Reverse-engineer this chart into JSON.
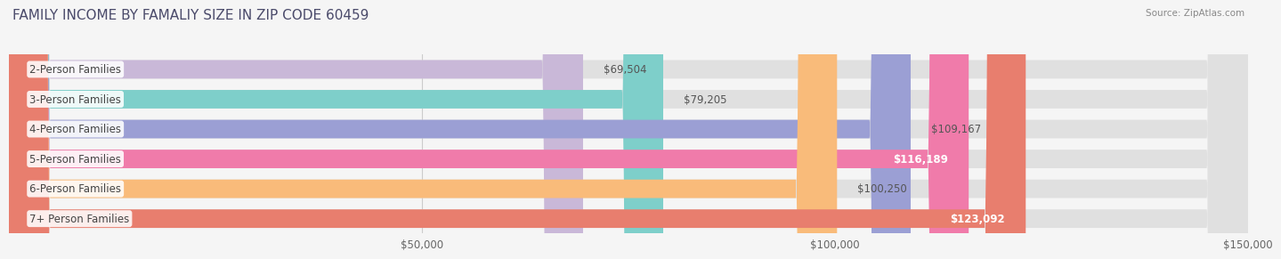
{
  "title": "FAMILY INCOME BY FAMALIY SIZE IN ZIP CODE 60459",
  "source": "Source: ZipAtlas.com",
  "categories": [
    "2-Person Families",
    "3-Person Families",
    "4-Person Families",
    "5-Person Families",
    "6-Person Families",
    "7+ Person Families"
  ],
  "values": [
    69504,
    79205,
    109167,
    116189,
    100250,
    123092
  ],
  "labels": [
    "$69,504",
    "$79,205",
    "$109,167",
    "$116,189",
    "$100,250",
    "$123,092"
  ],
  "bar_colors": [
    "#c9b8d8",
    "#7ecfca",
    "#9b9fd4",
    "#f07baa",
    "#f9bb7a",
    "#e87e6e"
  ],
  "label_inside": [
    false,
    false,
    false,
    true,
    false,
    true
  ],
  "xlim": [
    0,
    150000
  ],
  "xticks": [
    50000,
    100000,
    150000
  ],
  "xticklabels": [
    "$50,000",
    "$100,000",
    "$150,000"
  ],
  "background_color": "#f5f5f5",
  "title_color": "#4a4a6a",
  "title_fontsize": 11,
  "source_fontsize": 7.5,
  "bar_height": 0.62,
  "label_fontsize": 8.5,
  "category_fontsize": 8.5,
  "tick_fontsize": 8.5
}
